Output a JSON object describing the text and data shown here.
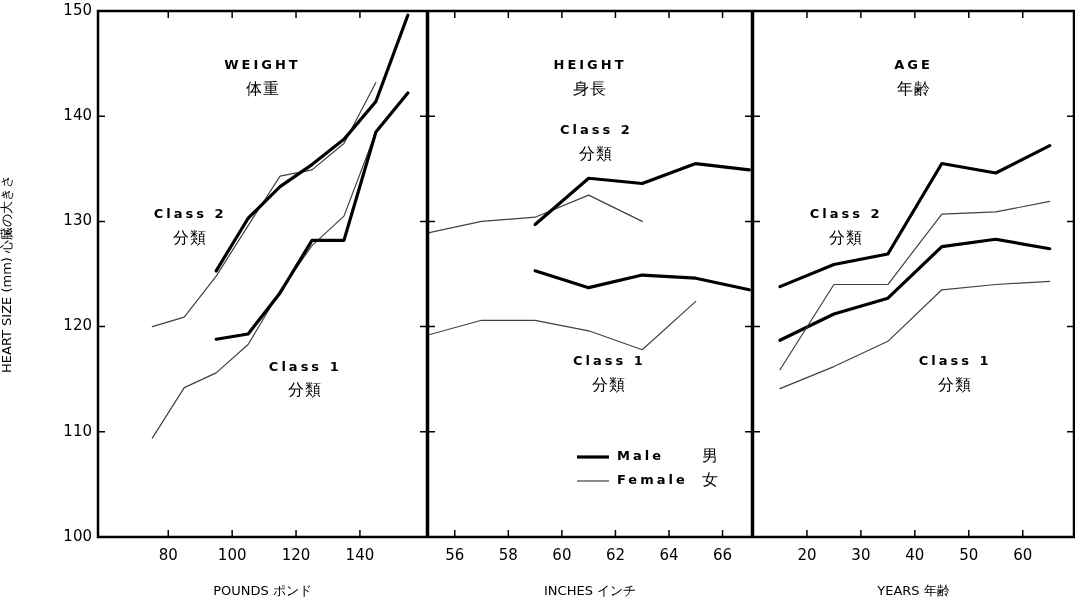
{
  "chart_data": [
    {
      "type": "line",
      "title": "WEIGHT\n体重",
      "xlabel": "POUNDS ポンド",
      "ylabel": "HEART SIZE (mm) 心臓の大きさ",
      "xlim": [
        58,
        161
      ],
      "xticks": [
        80,
        100,
        120,
        140
      ],
      "ylim": [
        100,
        150
      ],
      "yticks": [
        100,
        110,
        120,
        130,
        140,
        150
      ],
      "grid": false,
      "marker": "none",
      "line_style": "solid",
      "annotations": [
        "Class 2\n分類",
        "Class 1\n分類"
      ],
      "series": [
        {
          "color": "#000000",
          "x": [
            95,
            105,
            115,
            125,
            135,
            145,
            155
          ],
          "values": [
            125.3,
            130.3,
            133.3,
            135.4,
            137.8,
            141.4,
            149.6
          ]
        },
        {
          "color": "#404040",
          "x": [
            75,
            85,
            95,
            105,
            115,
            125,
            135,
            145
          ],
          "values": [
            120.0,
            120.9,
            124.8,
            129.6,
            134.3,
            134.9,
            137.4,
            143.2
          ]
        },
        {
          "color": "#000000",
          "x": [
            95,
            105,
            115,
            125,
            135,
            145,
            155
          ],
          "values": [
            118.8,
            119.3,
            123.2,
            128.2,
            128.2,
            138.5,
            142.2
          ]
        },
        {
          "color": "#404040",
          "x": [
            75,
            85,
            95,
            105,
            115,
            125,
            135,
            145
          ],
          "values": [
            109.4,
            114.2,
            115.6,
            118.3,
            123.4,
            127.7,
            130.5,
            138.5
          ]
        }
      ]
    },
    {
      "type": "line",
      "title": "HEIGHT\n身長",
      "xlabel": "INCHES インチ",
      "xlim": [
        55,
        67.1
      ],
      "xticks": [
        56,
        58,
        60,
        62,
        64,
        66
      ],
      "ylim": [
        100,
        150
      ],
      "yticks": [
        100,
        110,
        120,
        130,
        140,
        150
      ],
      "tick_labels": "x",
      "grid": false,
      "marker": "none",
      "line_style": "solid",
      "legend": "bottom right",
      "annotations": [
        "Class 2\n分類",
        "Class 1\n分類"
      ],
      "series": [
        {
          "name": "Male 男",
          "color": "#000000",
          "x": [
            59,
            61,
            63,
            65,
            67
          ],
          "values": [
            129.7,
            134.1,
            133.6,
            135.5,
            134.9
          ]
        },
        {
          "name": "Female 女",
          "color": "#404040",
          "x": [
            55,
            57,
            59,
            61,
            63
          ],
          "values": [
            128.9,
            130.0,
            130.4,
            132.5,
            130.0
          ]
        },
        {
          "color": "#000000",
          "x": [
            59,
            61,
            63,
            65,
            67
          ],
          "values": [
            125.3,
            123.7,
            124.9,
            124.6,
            123.5
          ]
        },
        {
          "color": "#404040",
          "x": [
            55,
            57,
            59,
            61,
            63,
            65
          ],
          "values": [
            119.2,
            120.6,
            120.6,
            119.6,
            117.8,
            122.4
          ]
        }
      ]
    },
    {
      "type": "line",
      "title": "AGE\n年齢",
      "xlabel": "YEARS 年齢",
      "xlim": [
        10,
        69.5
      ],
      "xticks": [
        20,
        30,
        40,
        50,
        60
      ],
      "ylim": [
        100,
        150
      ],
      "yticks": [
        100,
        110,
        120,
        130,
        140,
        150
      ],
      "tick_labels": "x",
      "grid": false,
      "marker": "none",
      "line_style": "solid",
      "annotations": [
        "Class 2\n分類",
        "Class 1\n分類"
      ],
      "series": [
        {
          "color": "#000000",
          "x": [
            15,
            25,
            35,
            45,
            55,
            65
          ],
          "values": [
            123.8,
            125.9,
            126.9,
            135.5,
            134.6,
            137.2
          ]
        },
        {
          "color": "#404040",
          "x": [
            15,
            25,
            35,
            45,
            55,
            65
          ],
          "values": [
            115.9,
            124.0,
            124.0,
            130.7,
            130.9,
            131.9
          ]
        },
        {
          "color": "#000000",
          "x": [
            15,
            25,
            35,
            45,
            55,
            65
          ],
          "values": [
            118.7,
            121.2,
            122.7,
            127.6,
            128.3,
            127.4
          ]
        },
        {
          "color": "#404040",
          "x": [
            15,
            25,
            35,
            45,
            55,
            65
          ],
          "values": [
            114.1,
            116.2,
            118.6,
            123.5,
            124.0,
            124.3
          ]
        }
      ]
    }
  ]
}
